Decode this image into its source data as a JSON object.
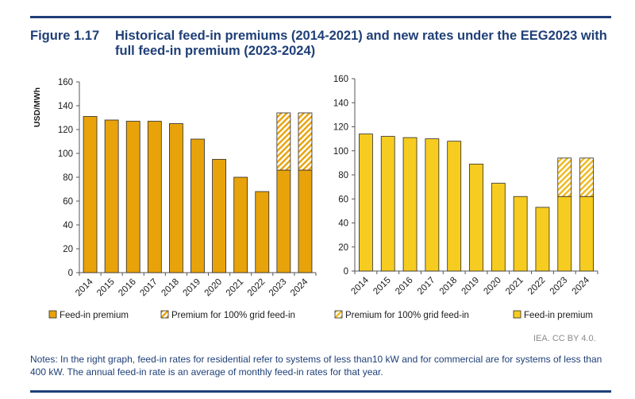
{
  "figure": {
    "number": "Figure 1.17",
    "title": "Historical feed-in premiums (2014-2021) and new rates under the EEG2023 with full feed-in premium (2023-2024)"
  },
  "colors": {
    "rule": "#1f3f77",
    "left_solid": "#e8a20a",
    "left_hatch": "#e8a20a",
    "right_solid": "#f7cc20",
    "right_hatch": "#f0b81a",
    "bar_outline": "#2a2a2a"
  },
  "chart_data": [
    {
      "type": "bar",
      "stacked": true,
      "ylabel": "USD/MWh",
      "ylim": [
        0,
        160
      ],
      "yticks": [
        0,
        20,
        40,
        60,
        80,
        100,
        120,
        140,
        160
      ],
      "categories": [
        "2014",
        "2015",
        "2016",
        "2017",
        "2018",
        "2019",
        "2020",
        "2021",
        "2022",
        "2023",
        "2024"
      ],
      "series": [
        {
          "name": "Feed-in premium",
          "pattern": "solid",
          "values": [
            131,
            128,
            127,
            127,
            125,
            112,
            95,
            80,
            68,
            86,
            86
          ]
        },
        {
          "name": "Premium for 100% grid feed-in",
          "pattern": "hatched",
          "values": [
            0,
            0,
            0,
            0,
            0,
            0,
            0,
            0,
            0,
            48,
            48
          ]
        }
      ],
      "legend": [
        "Feed-in premium",
        "Premium for 100% grid feed-in"
      ],
      "legend_position": "bottom",
      "grid": false
    },
    {
      "type": "bar",
      "stacked": true,
      "ylabel": "",
      "ylim": [
        0,
        160
      ],
      "yticks": [
        0,
        20,
        40,
        60,
        80,
        100,
        120,
        140,
        160
      ],
      "categories": [
        "2014",
        "2015",
        "2016",
        "2017",
        "2018",
        "2019",
        "2020",
        "2021",
        "2022",
        "2023",
        "2024"
      ],
      "series": [
        {
          "name": "Feed-in premium",
          "pattern": "solid",
          "values": [
            114,
            112,
            111,
            110,
            108,
            89,
            73,
            62,
            53,
            62,
            62
          ]
        },
        {
          "name": "Premium for 100% grid feed-in",
          "pattern": "hatched",
          "values": [
            0,
            0,
            0,
            0,
            0,
            0,
            0,
            0,
            0,
            32,
            32
          ]
        }
      ],
      "legend": [
        "Premium for 100% grid feed-in",
        "Feed-in premium"
      ],
      "legend_position": "bottom",
      "grid": false
    }
  ],
  "credit": "IEA. CC BY 4.0.",
  "notes": "Notes: In the right graph, feed-in rates for residential refer to systems of less than10 kW and for commercial are for systems of less than 400 kW. The annual feed-in rate is an average of monthly feed-in rates for that year."
}
